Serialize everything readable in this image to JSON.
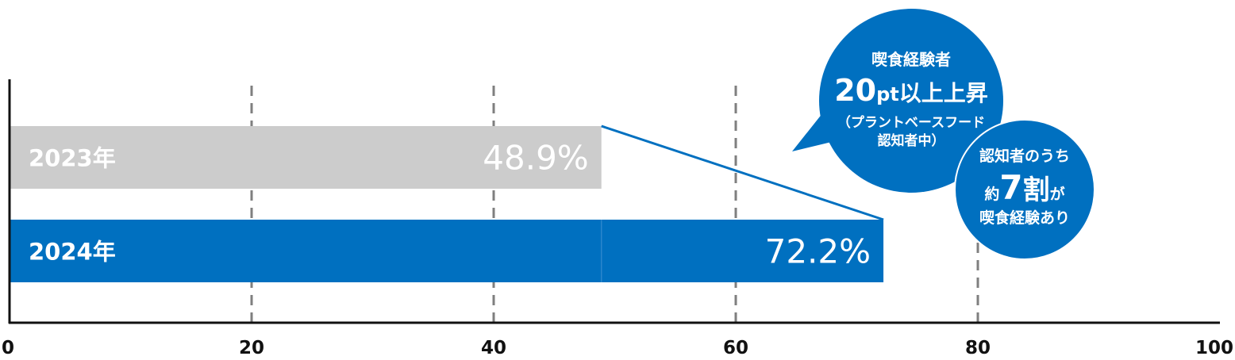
{
  "colors": {
    "bar_2023": "#cccccc",
    "bar_2024": "#0070c0",
    "axis": "#111111",
    "grid": "#7f7f7f",
    "connector": "#0070c0",
    "bubble": "#0070c0",
    "label_text": "#ffffff"
  },
  "chart_data": {
    "type": "bar",
    "orientation": "horizontal",
    "categories": [
      "2023年",
      "2024年"
    ],
    "values": [
      48.9,
      72.2
    ],
    "value_labels": [
      "48.9%",
      "72.2%"
    ],
    "xlim": [
      0,
      100
    ],
    "x_ticks": [
      0,
      20,
      40,
      60,
      80,
      100
    ],
    "x_tick_labels": [
      "0",
      "20",
      "40",
      "60",
      "80",
      "100"
    ],
    "grid": "vertical dashed",
    "title": "",
    "xlabel": "",
    "ylabel": ""
  },
  "callouts": {
    "bubble1": {
      "line1": "喫食経験者",
      "line2_num": "20",
      "line2_unit": "pt",
      "line2_rest": "以上上昇",
      "line3": "（プラントベースフード",
      "line4": "認知者中）"
    },
    "bubble2": {
      "line1": "認知者のうち",
      "line2_pre": "約",
      "line2_num": "7",
      "line2_mid": "割",
      "line2_post": "が",
      "line3": "喫食経験あり"
    }
  }
}
